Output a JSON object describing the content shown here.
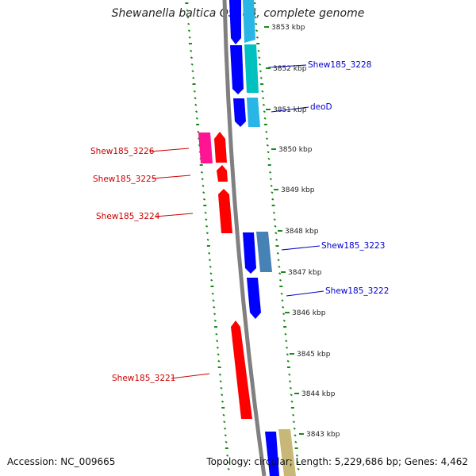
{
  "title": "Shewanella baltica OS185, complete genome",
  "accession": "Accession: NC_009665",
  "summary": "Topology: circular; Length: 5,229,686 bp; Genes: 4,462",
  "colors": {
    "backbone": "#808080",
    "tick": "#1a8a1a",
    "gene_red": "#ff0000",
    "gene_blue": "#0000ff",
    "label_red": "#cc0000",
    "label_blue": "#0000cc"
  },
  "scale": {
    "unit": "kbp",
    "ticks": [
      "3853 kbp",
      "3852 kbp",
      "3851 kbp",
      "3850 kbp",
      "3849 kbp",
      "3848 kbp",
      "3847 kbp",
      "3846 kbp",
      "3845 kbp",
      "3844 kbp",
      "3843 kbp"
    ]
  },
  "genes": [
    {
      "label": "Shew185_3228",
      "side": "right",
      "color": "#00c0c0"
    },
    {
      "label": "deoD",
      "side": "right",
      "color": "#29b6e6"
    },
    {
      "label": "Shew185_3226",
      "side": "left",
      "color": "#ff1493"
    },
    {
      "label": "Shew185_3225",
      "side": "left",
      "color": "#ff0000"
    },
    {
      "label": "Shew185_3224",
      "side": "left",
      "color": "#ff0000"
    },
    {
      "label": "Shew185_3223",
      "side": "right",
      "color": "#4682b4"
    },
    {
      "label": "Shew185_3222",
      "side": "right",
      "color": "#0000ff"
    },
    {
      "label": "Shew185_3221",
      "side": "left",
      "color": "#ff0000"
    }
  ]
}
